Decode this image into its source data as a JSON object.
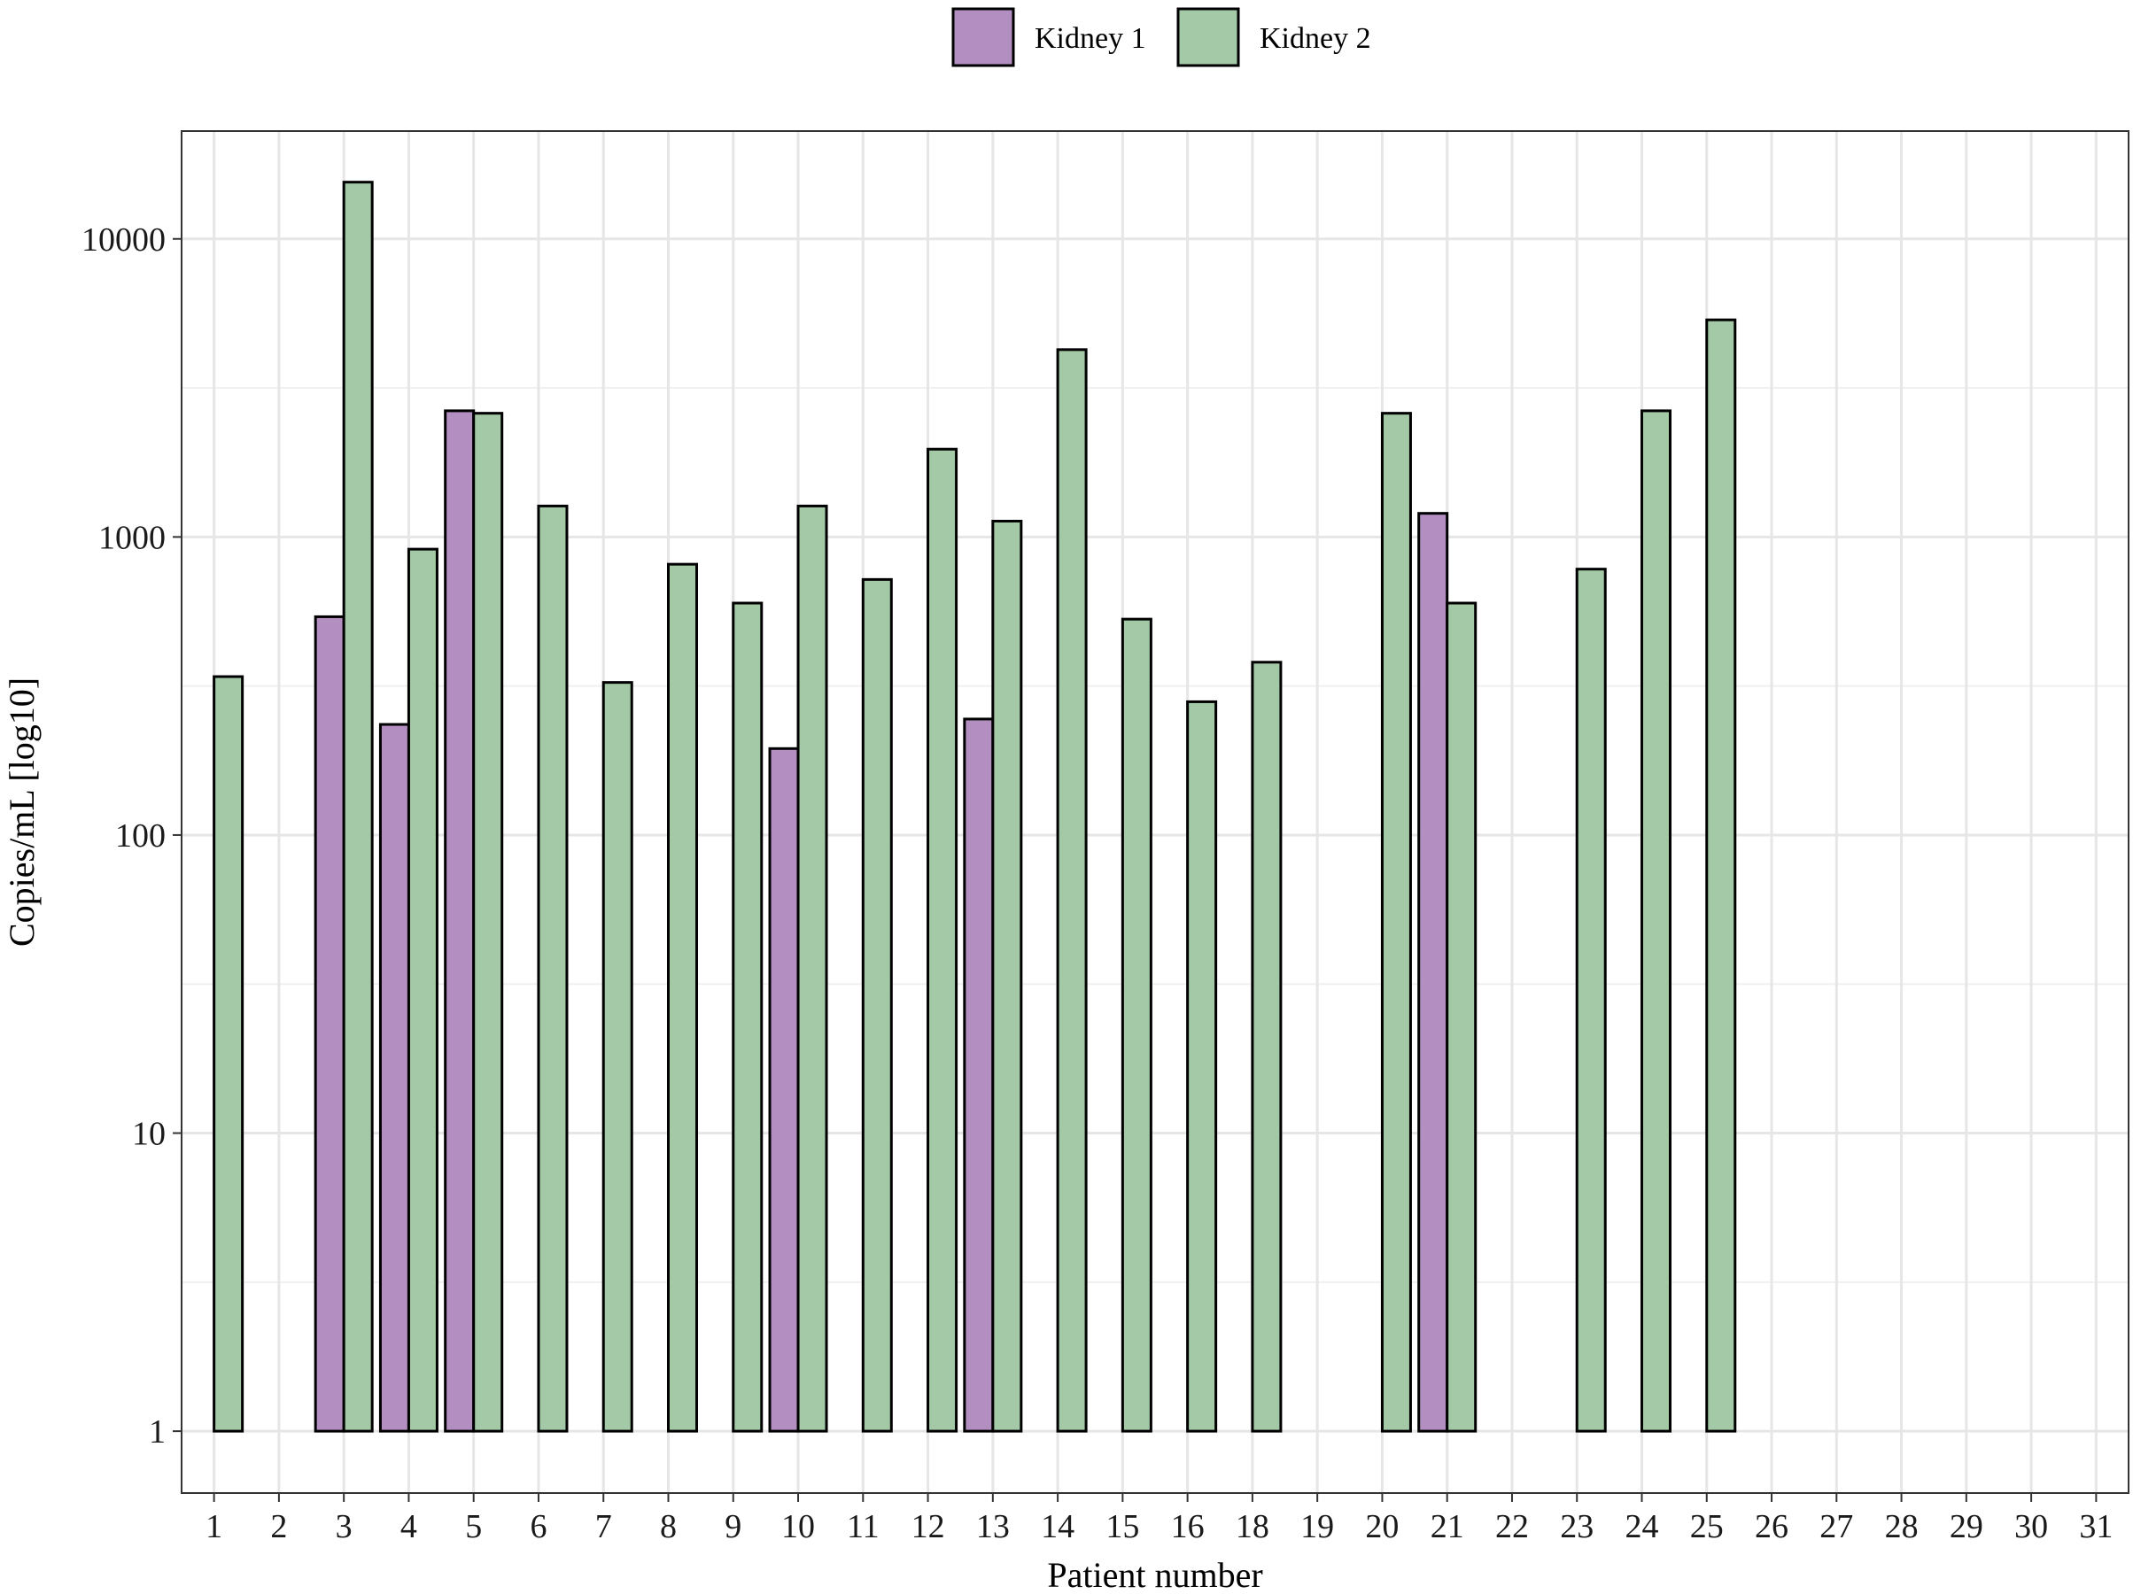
{
  "chart_data": {
    "type": "bar",
    "title": "",
    "xlabel": "Patient number",
    "ylabel": "Copies/mL [log10]",
    "yscale": "log10",
    "ylim": [
      0.62,
      23000
    ],
    "yticks": [
      1,
      10,
      100,
      1000,
      10000
    ],
    "ytick_labels": [
      "1",
      "10",
      "100",
      "1000",
      "10000"
    ],
    "grid": true,
    "legend_position": "top",
    "categories": [
      "1",
      "2",
      "3",
      "4",
      "5",
      "6",
      "7",
      "8",
      "9",
      "10",
      "11",
      "12",
      "13",
      "14",
      "15",
      "16",
      "18",
      "19",
      "20",
      "21",
      "22",
      "23",
      "24",
      "25",
      "26",
      "27",
      "28",
      "29",
      "30",
      "31"
    ],
    "series": [
      {
        "name": "Kidney 1",
        "color": "#b28fc0",
        "values": [
          null,
          null,
          540,
          235,
          2650,
          null,
          null,
          null,
          null,
          195,
          null,
          null,
          245,
          null,
          null,
          null,
          null,
          null,
          null,
          1200,
          null,
          null,
          null,
          null,
          null,
          null,
          null,
          null,
          null,
          null
        ]
      },
      {
        "name": "Kidney 2",
        "color": "#a3c9a6",
        "values": [
          340,
          null,
          15500,
          910,
          2600,
          1270,
          325,
          810,
          600,
          1270,
          720,
          1970,
          1130,
          4250,
          530,
          280,
          380,
          null,
          2600,
          600,
          null,
          780,
          2650,
          5350,
          null,
          null,
          null,
          null,
          null,
          null
        ]
      }
    ]
  }
}
